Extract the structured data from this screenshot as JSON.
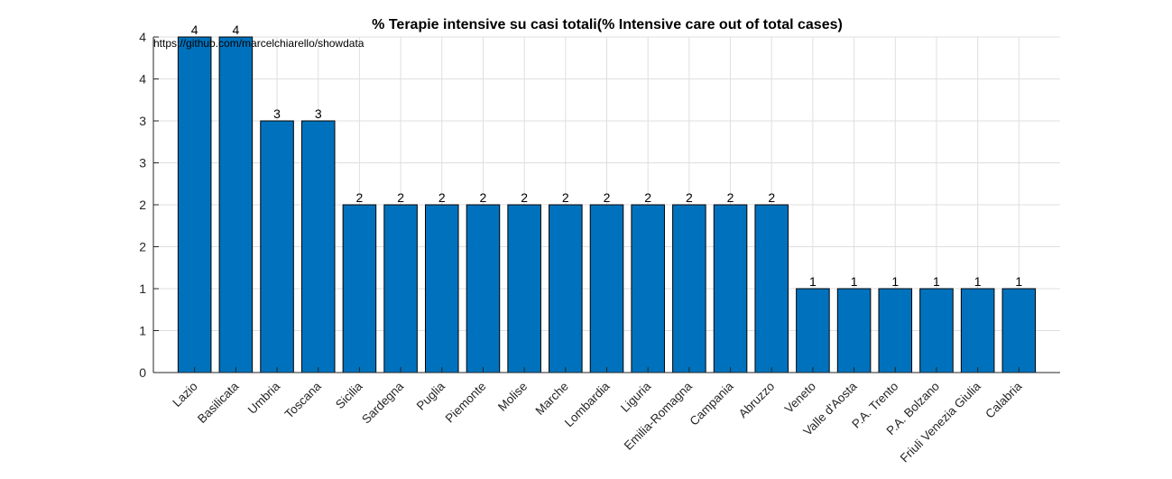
{
  "chart_data": {
    "type": "bar",
    "title": "% Terapie intensive su casi totali(% Intensive care out of total cases)",
    "annotation": "https://github.com/marcelchiarello/showdata",
    "categories": [
      "Lazio",
      "Basilicata",
      "Umbria",
      "Toscana",
      "Sicilia",
      "Sardegna",
      "Puglia",
      "Piemonte",
      "Molise",
      "Marche",
      "Lombardia",
      "Liguria",
      "Emilia-Romagna",
      "Campania",
      "Abruzzo",
      "Veneto",
      "Valle d'Aosta",
      "P.A. Trento",
      "P.A. Bolzano",
      "Friuli Venezia Giulia",
      "Calabria"
    ],
    "values": [
      4.0,
      4.0,
      3.0,
      3.0,
      2.0,
      2.0,
      2.0,
      2.0,
      2.0,
      2.0,
      2.0,
      2.0,
      2.0,
      2.0,
      2.0,
      1.0,
      1.0,
      1.0,
      1.0,
      1.0,
      1.0
    ],
    "data_labels": [
      "4",
      "4",
      "3",
      "3",
      "2",
      "2",
      "2",
      "2",
      "2",
      "2",
      "2",
      "2",
      "2",
      "2",
      "2",
      "1",
      "1",
      "1",
      "1",
      "1",
      "1"
    ],
    "yticks": [
      0,
      0.5,
      1,
      1.5,
      2,
      2.5,
      3,
      3.5,
      4
    ],
    "ytick_labels": [
      "0",
      "1",
      "1",
      "2",
      "2",
      "3",
      "3",
      "4",
      "4"
    ],
    "ylim": [
      0,
      4.0
    ],
    "grid": true,
    "bar_color": "#0072BD",
    "xlabel": "",
    "ylabel": ""
  }
}
